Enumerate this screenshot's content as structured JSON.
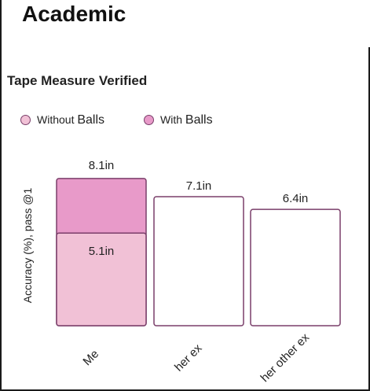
{
  "page": {
    "heading": "Academic"
  },
  "chart_data": {
    "type": "bar",
    "title": "Tape Measure Verified",
    "ylabel": "Accuracy (%), pass @1",
    "xlabel": "",
    "ylim": [
      0,
      9
    ],
    "grid": false,
    "legend_position": "top-left",
    "categories": [
      "Me",
      "her ex",
      "her other ex"
    ],
    "series": [
      {
        "name": "Without Balls",
        "values": [
          5.1,
          7.1,
          6.4
        ],
        "labels": [
          "5.1in",
          "7.1in",
          "6.4in"
        ],
        "color": "#f1c1d6"
      },
      {
        "name": "With Balls",
        "values": [
          8.1,
          null,
          null
        ],
        "labels": [
          "8.1in",
          "",
          ""
        ],
        "color": "#e89ac9"
      }
    ],
    "stroke_color": "#7a3f6a"
  }
}
